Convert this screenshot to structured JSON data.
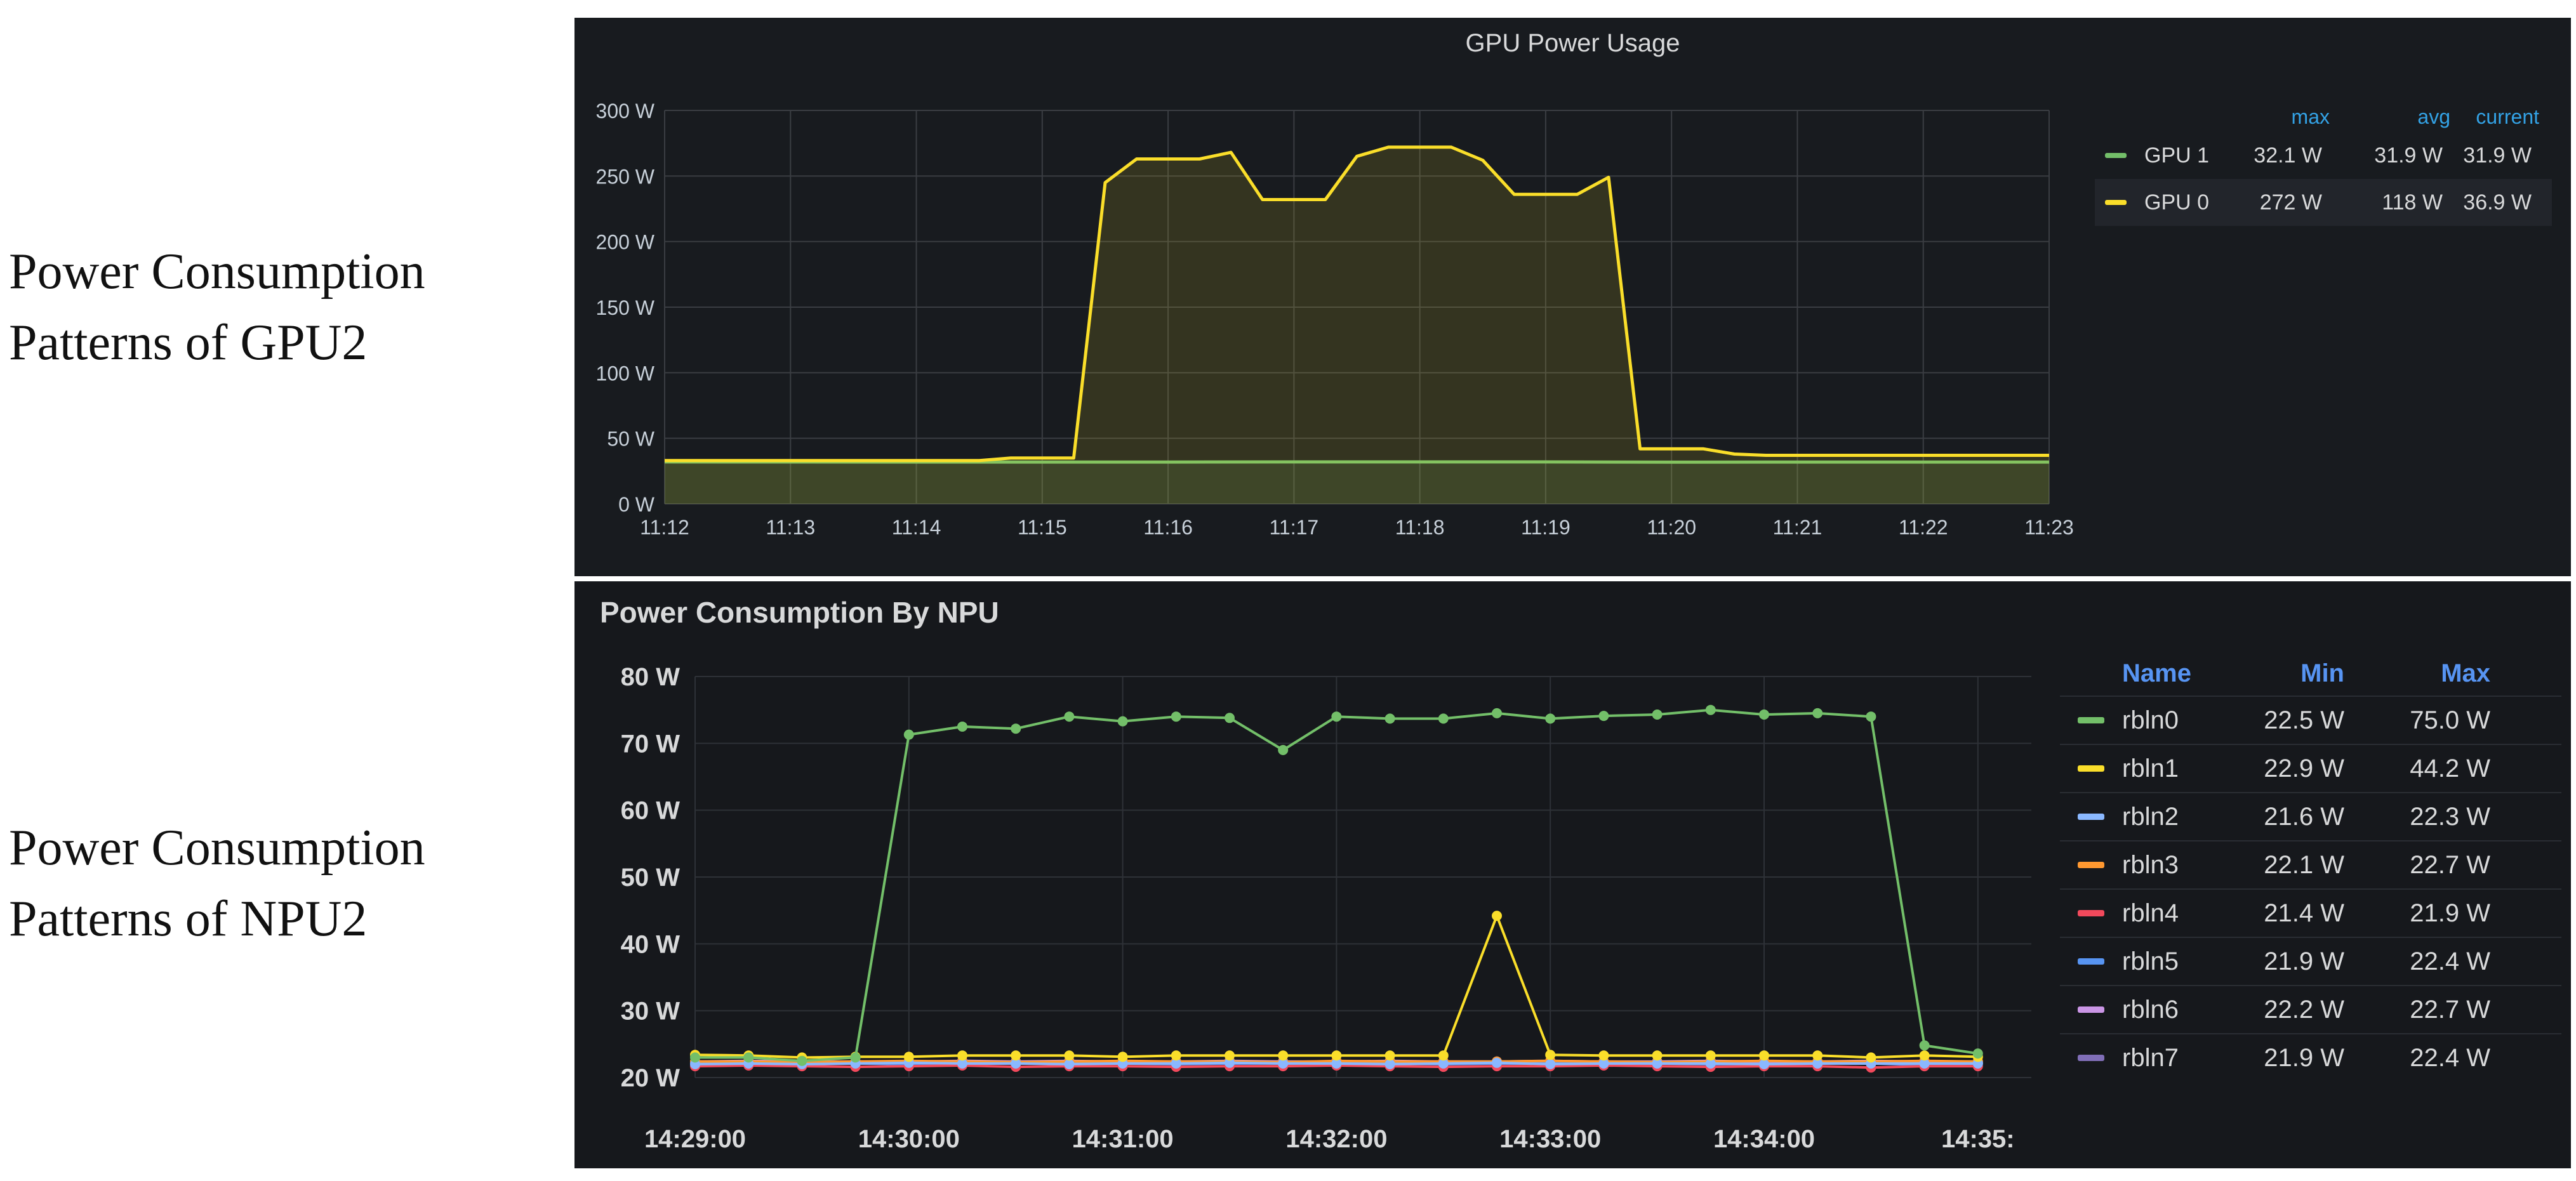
{
  "labels": {
    "gpu": [
      "Power Consumption",
      "Patterns of GPU2"
    ],
    "npu": [
      "Power Consumption",
      "Patterns of NPU2"
    ]
  },
  "chart_data": [
    {
      "type": "area",
      "title": "GPU Power Usage",
      "unit": "W",
      "ylim": [
        0,
        300
      ],
      "yticks": [
        0,
        50,
        100,
        150,
        200,
        250,
        300
      ],
      "ytick_labels": [
        "0 W",
        "50 W",
        "100 W",
        "150 W",
        "200 W",
        "250 W",
        "300 W"
      ],
      "xlim": [
        "11:12",
        "11:23"
      ],
      "xtick_labels": [
        "11:12",
        "11:13",
        "11:14",
        "11:15",
        "11:16",
        "11:17",
        "11:18",
        "11:19",
        "11:20",
        "11:21",
        "11:22",
        "11:23"
      ],
      "grid": true,
      "legend_position": "right",
      "legend_headers": [
        "max",
        "avg",
        "current"
      ],
      "series": [
        {
          "name": "GPU 1",
          "color": "#73bf69",
          "max": "32.1 W",
          "avg": "31.9 W",
          "current": "31.9 W",
          "x": [
            "11:12:00",
            "11:14:00",
            "11:16:00",
            "11:17:00",
            "11:18:00",
            "11:19:00",
            "11:20:00",
            "11:21:00",
            "11:22:00",
            "11:23:00"
          ],
          "values": [
            32,
            31.9,
            31.9,
            32,
            32,
            32,
            31.8,
            31.9,
            31.9,
            31.9
          ]
        },
        {
          "name": "GPU 0",
          "color": "#fade2a",
          "max": "272 W",
          "avg": "118 W",
          "current": "36.9 W",
          "x": [
            "11:12:00",
            "11:14:30",
            "11:14:45",
            "11:15:15",
            "11:15:30",
            "11:15:45",
            "11:16:15",
            "11:16:30",
            "11:16:45",
            "11:17:15",
            "11:17:30",
            "11:17:45",
            "11:18:15",
            "11:18:30",
            "11:18:45",
            "11:19:15",
            "11:19:30",
            "11:19:45",
            "11:20:15",
            "11:20:30",
            "11:20:45",
            "11:23:00"
          ],
          "values": [
            33,
            33,
            35,
            35,
            245,
            263,
            263,
            268,
            232,
            232,
            265,
            272,
            272,
            262,
            236,
            236,
            249,
            42,
            42,
            38,
            37,
            37
          ]
        }
      ]
    },
    {
      "type": "line",
      "title": "Power Consumption By NPU",
      "unit": "W",
      "ylim": [
        20,
        80
      ],
      "yticks": [
        20,
        30,
        40,
        50,
        60,
        70,
        80
      ],
      "ytick_labels": [
        "20 W",
        "30 W",
        "40 W",
        "50 W",
        "60 W",
        "70 W",
        "80 W"
      ],
      "xlim": [
        "14:29:00",
        "14:35:15"
      ],
      "xtick_labels": [
        "14:29:00",
        "14:30:00",
        "14:31:00",
        "14:32:00",
        "14:33:00",
        "14:34:00",
        "14:35:"
      ],
      "grid": true,
      "legend_position": "right",
      "legend_headers": [
        "Name",
        "Min",
        "Max"
      ],
      "x": [
        "14:29:00",
        "14:29:15",
        "14:29:30",
        "14:29:45",
        "14:30:00",
        "14:30:15",
        "14:30:30",
        "14:30:45",
        "14:31:00",
        "14:31:15",
        "14:31:30",
        "14:31:45",
        "14:32:00",
        "14:32:15",
        "14:32:30",
        "14:32:45",
        "14:33:00",
        "14:33:15",
        "14:33:30",
        "14:33:45",
        "14:34:00",
        "14:34:15",
        "14:34:30",
        "14:34:45",
        "14:35:00"
      ],
      "series": [
        {
          "name": "rbln0",
          "color": "#73bf69",
          "min": "22.5 W",
          "max": "75.0 W",
          "values": [
            23,
            23,
            22.5,
            23,
            71.3,
            72.5,
            72.2,
            74,
            73.3,
            74,
            73.8,
            69,
            74,
            73.7,
            73.7,
            74.5,
            73.7,
            74.1,
            74.3,
            75,
            74.3,
            74.5,
            74,
            24.8,
            23.6
          ]
        },
        {
          "name": "rbln1",
          "color": "#fade2a",
          "min": "22.9 W",
          "max": "44.2 W",
          "values": [
            23.4,
            23.3,
            23,
            23.1,
            23.1,
            23.3,
            23.3,
            23.3,
            23.1,
            23.3,
            23.3,
            23.3,
            23.3,
            23.3,
            23.3,
            44.2,
            23.4,
            23.3,
            23.3,
            23.3,
            23.3,
            23.3,
            23,
            23.3,
            23.1
          ]
        },
        {
          "name": "rbln2",
          "color": "#8ab8ff",
          "min": "21.6 W",
          "max": "22.3 W",
          "values": [
            22,
            22.1,
            22,
            22.1,
            22.2,
            22.1,
            22.1,
            22,
            22.1,
            22.1,
            22.2,
            22.1,
            22.1,
            22,
            22.1,
            22.2,
            22,
            22.1,
            22.1,
            22.1,
            22,
            22.1,
            22.1,
            22.1,
            22.1
          ]
        },
        {
          "name": "rbln3",
          "color": "#ff9830",
          "min": "22.1 W",
          "max": "22.7 W",
          "values": [
            22.4,
            22.4,
            22.3,
            22.4,
            22.5,
            22.4,
            22.3,
            22.4,
            22.5,
            22.4,
            22.4,
            22.3,
            22.5,
            22.4,
            22.4,
            22.4,
            22.5,
            22.4,
            22.3,
            22.4,
            22.5,
            22.4,
            22.4,
            22.5,
            22.4
          ]
        },
        {
          "name": "rbln4",
          "color": "#f2495c",
          "min": "21.4 W",
          "max": "21.9 W",
          "values": [
            21.7,
            21.8,
            21.7,
            21.6,
            21.7,
            21.8,
            21.6,
            21.7,
            21.7,
            21.6,
            21.7,
            21.7,
            21.8,
            21.7,
            21.6,
            21.7,
            21.7,
            21.8,
            21.7,
            21.6,
            21.7,
            21.7,
            21.5,
            21.7,
            21.7
          ]
        },
        {
          "name": "rbln5",
          "color": "#5794f2",
          "min": "21.9 W",
          "max": "22.4 W",
          "values": [
            22.1,
            22,
            22.1,
            22.1,
            22,
            22.1,
            22.1,
            22.2,
            22.1,
            22,
            22.1,
            22.1,
            22.2,
            22.1,
            22,
            22.1,
            22.1,
            22.2,
            22.1,
            22,
            22,
            22.1,
            22.1,
            21.9,
            22.1
          ]
        },
        {
          "name": "rbln6",
          "color": "#ca95e5",
          "min": "22.2 W",
          "max": "22.7 W",
          "values": [
            22.4,
            22.5,
            22.4,
            22.4,
            22.4,
            22.5,
            22.4,
            22.5,
            22.4,
            22.4,
            22.5,
            22.4,
            22.4,
            22.5,
            22.4,
            22.4,
            22.5,
            22.4,
            22.4,
            22.5,
            22.4,
            22.4,
            22.5,
            22.4,
            22.4
          ]
        },
        {
          "name": "rbln7",
          "color": "#806eb7",
          "min": "21.9 W",
          "max": "22.4 W",
          "values": [
            22.1,
            22.1,
            22.2,
            22.1,
            22.1,
            22.2,
            22.1,
            22.1,
            22.2,
            22.1,
            22.1,
            22.2,
            22.1,
            22.1,
            22.2,
            22.1,
            22.1,
            22.2,
            22.1,
            22.1,
            22.2,
            22.1,
            22.1,
            22.2,
            22.1
          ]
        }
      ]
    }
  ]
}
